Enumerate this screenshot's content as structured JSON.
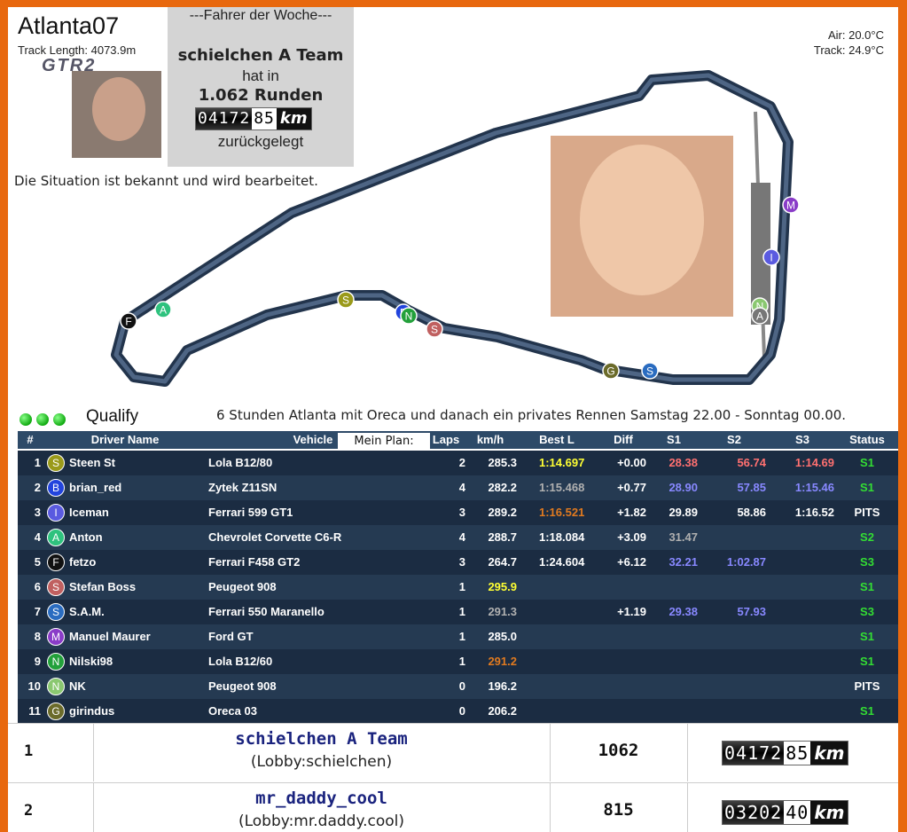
{
  "header": {
    "track_name": "Atlanta07",
    "track_length": "Track Length: 4073.9m",
    "logo": "GTR2",
    "status_note": "Die Situation ist bekannt und wird bearbeitet."
  },
  "weather": {
    "air": "Air: 20.0°C",
    "track": "Track: 24.9°C"
  },
  "driver_of_week": {
    "heading": "---Fahrer der Woche---",
    "team": "schielchen A Team",
    "line1": "hat in",
    "laps": "1.062 Runden",
    "odometer": {
      "whole": "04172",
      "fraction": "85",
      "unit": "km"
    },
    "line2": "zurückgelegt"
  },
  "track_markers": [
    {
      "letter": "F",
      "color": "#111111"
    },
    {
      "letter": "A",
      "color": "#2ec27e"
    },
    {
      "letter": "S",
      "color": "#9a9a1a"
    },
    {
      "letter": "B",
      "color": "#2244dd"
    },
    {
      "letter": "N",
      "color": "#22a03a"
    },
    {
      "letter": "S",
      "color": "#c06060"
    },
    {
      "letter": "G",
      "color": "#6b6b2a"
    },
    {
      "letter": "S",
      "color": "#2a6cc0"
    },
    {
      "letter": "M",
      "color": "#8a3cc8"
    },
    {
      "letter": "I",
      "color": "#5a5ae0"
    },
    {
      "letter": "N",
      "color": "#8ac870"
    },
    {
      "letter": "A",
      "color": "#777777"
    }
  ],
  "session": {
    "label": "Qualify",
    "message": "6 Stunden Atlanta mit Oreca und danach ein privates Rennen Samstag 22.00 - Sonntag 00.00."
  },
  "overlay_note": "Mein Plan:",
  "table": {
    "columns": [
      "#",
      "Driver Name",
      "Vehicle",
      "Laps",
      "km/h",
      "Best L",
      "Diff",
      "S1",
      "S2",
      "S3",
      "Status"
    ],
    "rows": [
      {
        "pos": "1",
        "badge": "S",
        "badge_color": "#9a9a1a",
        "driver": "Steen St",
        "vehicle": "Lola B12/80",
        "laps": "2",
        "speed": "285.3",
        "best": "1:14.697",
        "diff": "+0.00",
        "s1": "28.38",
        "s2": "56.74",
        "s3": "1:14.69",
        "status": "S1",
        "colors": {
          "best": "#ffff33",
          "s1": "#ff7070",
          "s2": "#ff7070",
          "s3": "#ff7070",
          "status": "#33dd33"
        }
      },
      {
        "pos": "2",
        "badge": "B",
        "badge_color": "#2244dd",
        "driver": "brian_red",
        "vehicle": "Zytek Z11SN",
        "laps": "4",
        "speed": "282.2",
        "best": "1:15.468",
        "diff": "+0.77",
        "s1": "28.90",
        "s2": "57.85",
        "s3": "1:15.46",
        "status": "S1",
        "colors": {
          "best": "#b0b0b0",
          "s1": "#8888ff",
          "s2": "#8888ff",
          "s3": "#8888ff",
          "status": "#33dd33"
        }
      },
      {
        "pos": "3",
        "badge": "I",
        "badge_color": "#5a5ae0",
        "driver": "Iceman",
        "vehicle": "Ferrari 599 GT1",
        "laps": "3",
        "speed": "289.2",
        "best": "1:16.521",
        "diff": "+1.82",
        "s1": "29.89",
        "s2": "58.86",
        "s3": "1:16.52",
        "status": "PITS",
        "colors": {
          "best": "#e07a20"
        }
      },
      {
        "pos": "4",
        "badge": "A",
        "badge_color": "#2ec27e",
        "driver": "Anton",
        "vehicle": "Chevrolet Corvette C6-R",
        "laps": "4",
        "speed": "288.7",
        "best": "1:18.084",
        "diff": "+3.09",
        "s1": "31.47",
        "s2": "",
        "s3": "",
        "status": "S2",
        "colors": {
          "s1": "#b0b0b0",
          "status": "#33dd33"
        }
      },
      {
        "pos": "5",
        "badge": "F",
        "badge_color": "#111111",
        "driver": "fetzo",
        "vehicle": "Ferrari F458 GT2",
        "laps": "3",
        "speed": "264.7",
        "best": "1:24.604",
        "diff": "+6.12",
        "s1": "32.21",
        "s2": "1:02.87",
        "s3": "",
        "status": "S3",
        "colors": {
          "s1": "#8888ff",
          "s2": "#8888ff",
          "status": "#33dd33"
        }
      },
      {
        "pos": "6",
        "badge": "S",
        "badge_color": "#c06060",
        "driver": "Stefan Boss",
        "vehicle": "Peugeot 908",
        "laps": "1",
        "speed": "295.9",
        "best": "",
        "diff": "",
        "s1": "",
        "s2": "",
        "s3": "",
        "status": "S1",
        "colors": {
          "speed": "#ffff33",
          "status": "#33dd33"
        }
      },
      {
        "pos": "7",
        "badge": "S",
        "badge_color": "#2a6cc0",
        "driver": "S.A.M.",
        "vehicle": "Ferrari 550 Maranello",
        "laps": "1",
        "speed": "291.3",
        "best": "",
        "diff": "+1.19",
        "s1": "29.38",
        "s2": "57.93",
        "s3": "",
        "status": "S3",
        "colors": {
          "speed": "#b0b0b0",
          "s1": "#8888ff",
          "s2": "#8888ff",
          "status": "#33dd33"
        }
      },
      {
        "pos": "8",
        "badge": "M",
        "badge_color": "#8a3cc8",
        "driver": "Manuel Maurer",
        "vehicle": "Ford GT",
        "laps": "1",
        "speed": "285.0",
        "best": "",
        "diff": "",
        "s1": "",
        "s2": "",
        "s3": "",
        "status": "S1",
        "colors": {
          "status": "#33dd33"
        }
      },
      {
        "pos": "9",
        "badge": "N",
        "badge_color": "#22a03a",
        "driver": "Nilski98",
        "vehicle": "Lola B12/60",
        "laps": "1",
        "speed": "291.2",
        "best": "",
        "diff": "",
        "s1": "",
        "s2": "",
        "s3": "",
        "status": "S1",
        "colors": {
          "speed": "#e07a20",
          "status": "#33dd33"
        }
      },
      {
        "pos": "10",
        "badge": "N",
        "badge_color": "#8ac870",
        "driver": "NK",
        "vehicle": "Peugeot 908",
        "laps": "0",
        "speed": "196.2",
        "best": "",
        "diff": "",
        "s1": "",
        "s2": "",
        "s3": "",
        "status": "PITS",
        "colors": {}
      },
      {
        "pos": "11",
        "badge": "G",
        "badge_color": "#6b6b2a",
        "driver": "girindus",
        "vehicle": "Oreca 03",
        "laps": "0",
        "speed": "206.2",
        "best": "",
        "diff": "",
        "s1": "",
        "s2": "",
        "s3": "",
        "status": "S1",
        "colors": {
          "status": "#33dd33"
        }
      }
    ]
  },
  "standings": [
    {
      "rank": "1",
      "team": "schielchen A Team",
      "lobby": "(Lobby:schielchen)",
      "laps": "1062",
      "odometer": {
        "whole": "04172",
        "fraction": "85",
        "unit": "km"
      }
    },
    {
      "rank": "2",
      "team": "mr_daddy_cool",
      "lobby": "(Lobby:mr.daddy.cool)",
      "laps": "815",
      "odometer": {
        "whole": "03202",
        "fraction": "40",
        "unit": "km"
      }
    }
  ]
}
